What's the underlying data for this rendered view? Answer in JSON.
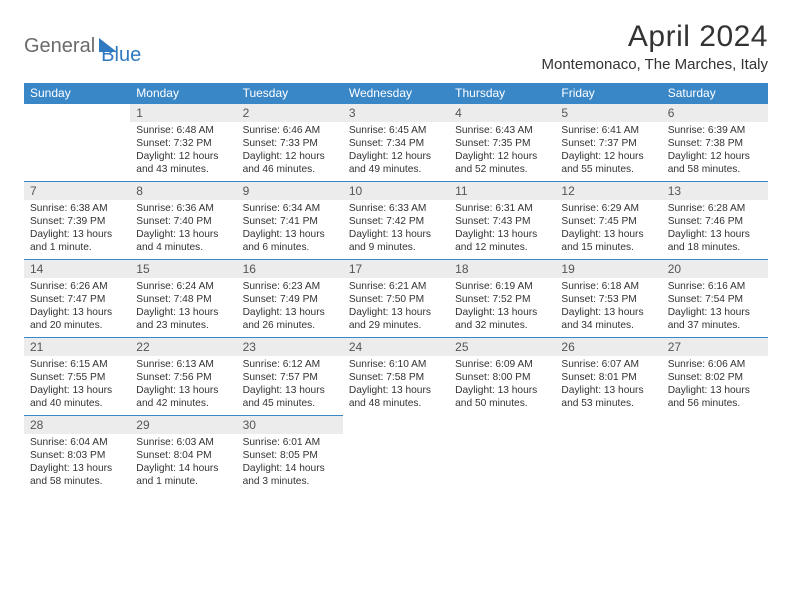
{
  "logo": {
    "general": "General",
    "blue": "Blue"
  },
  "title": "April 2024",
  "location": "Montemonaco, The Marches, Italy",
  "colors": {
    "header_bg": "#3a87c8",
    "header_text": "#ffffff",
    "daynum_bg": "#ececec",
    "text": "#333333",
    "logo_gray": "#6b6b6b",
    "logo_blue": "#2f7ac0"
  },
  "day_names": [
    "Sunday",
    "Monday",
    "Tuesday",
    "Wednesday",
    "Thursday",
    "Friday",
    "Saturday"
  ],
  "weeks": [
    [
      {
        "empty": true
      },
      {
        "num": "1",
        "sunrise": "6:48 AM",
        "sunset": "7:32 PM",
        "daylight": "12 hours and 43 minutes."
      },
      {
        "num": "2",
        "sunrise": "6:46 AM",
        "sunset": "7:33 PM",
        "daylight": "12 hours and 46 minutes."
      },
      {
        "num": "3",
        "sunrise": "6:45 AM",
        "sunset": "7:34 PM",
        "daylight": "12 hours and 49 minutes."
      },
      {
        "num": "4",
        "sunrise": "6:43 AM",
        "sunset": "7:35 PM",
        "daylight": "12 hours and 52 minutes."
      },
      {
        "num": "5",
        "sunrise": "6:41 AM",
        "sunset": "7:37 PM",
        "daylight": "12 hours and 55 minutes."
      },
      {
        "num": "6",
        "sunrise": "6:39 AM",
        "sunset": "7:38 PM",
        "daylight": "12 hours and 58 minutes."
      }
    ],
    [
      {
        "num": "7",
        "sunrise": "6:38 AM",
        "sunset": "7:39 PM",
        "daylight": "13 hours and 1 minute."
      },
      {
        "num": "8",
        "sunrise": "6:36 AM",
        "sunset": "7:40 PM",
        "daylight": "13 hours and 4 minutes."
      },
      {
        "num": "9",
        "sunrise": "6:34 AM",
        "sunset": "7:41 PM",
        "daylight": "13 hours and 6 minutes."
      },
      {
        "num": "10",
        "sunrise": "6:33 AM",
        "sunset": "7:42 PM",
        "daylight": "13 hours and 9 minutes."
      },
      {
        "num": "11",
        "sunrise": "6:31 AM",
        "sunset": "7:43 PM",
        "daylight": "13 hours and 12 minutes."
      },
      {
        "num": "12",
        "sunrise": "6:29 AM",
        "sunset": "7:45 PM",
        "daylight": "13 hours and 15 minutes."
      },
      {
        "num": "13",
        "sunrise": "6:28 AM",
        "sunset": "7:46 PM",
        "daylight": "13 hours and 18 minutes."
      }
    ],
    [
      {
        "num": "14",
        "sunrise": "6:26 AM",
        "sunset": "7:47 PM",
        "daylight": "13 hours and 20 minutes."
      },
      {
        "num": "15",
        "sunrise": "6:24 AM",
        "sunset": "7:48 PM",
        "daylight": "13 hours and 23 minutes."
      },
      {
        "num": "16",
        "sunrise": "6:23 AM",
        "sunset": "7:49 PM",
        "daylight": "13 hours and 26 minutes."
      },
      {
        "num": "17",
        "sunrise": "6:21 AM",
        "sunset": "7:50 PM",
        "daylight": "13 hours and 29 minutes."
      },
      {
        "num": "18",
        "sunrise": "6:19 AM",
        "sunset": "7:52 PM",
        "daylight": "13 hours and 32 minutes."
      },
      {
        "num": "19",
        "sunrise": "6:18 AM",
        "sunset": "7:53 PM",
        "daylight": "13 hours and 34 minutes."
      },
      {
        "num": "20",
        "sunrise": "6:16 AM",
        "sunset": "7:54 PM",
        "daylight": "13 hours and 37 minutes."
      }
    ],
    [
      {
        "num": "21",
        "sunrise": "6:15 AM",
        "sunset": "7:55 PM",
        "daylight": "13 hours and 40 minutes."
      },
      {
        "num": "22",
        "sunrise": "6:13 AM",
        "sunset": "7:56 PM",
        "daylight": "13 hours and 42 minutes."
      },
      {
        "num": "23",
        "sunrise": "6:12 AM",
        "sunset": "7:57 PM",
        "daylight": "13 hours and 45 minutes."
      },
      {
        "num": "24",
        "sunrise": "6:10 AM",
        "sunset": "7:58 PM",
        "daylight": "13 hours and 48 minutes."
      },
      {
        "num": "25",
        "sunrise": "6:09 AM",
        "sunset": "8:00 PM",
        "daylight": "13 hours and 50 minutes."
      },
      {
        "num": "26",
        "sunrise": "6:07 AM",
        "sunset": "8:01 PM",
        "daylight": "13 hours and 53 minutes."
      },
      {
        "num": "27",
        "sunrise": "6:06 AM",
        "sunset": "8:02 PM",
        "daylight": "13 hours and 56 minutes."
      }
    ],
    [
      {
        "num": "28",
        "sunrise": "6:04 AM",
        "sunset": "8:03 PM",
        "daylight": "13 hours and 58 minutes."
      },
      {
        "num": "29",
        "sunrise": "6:03 AM",
        "sunset": "8:04 PM",
        "daylight": "14 hours and 1 minute."
      },
      {
        "num": "30",
        "sunrise": "6:01 AM",
        "sunset": "8:05 PM",
        "daylight": "14 hours and 3 minutes."
      },
      {
        "empty": true
      },
      {
        "empty": true
      },
      {
        "empty": true
      },
      {
        "empty": true
      }
    ]
  ],
  "labels": {
    "sunrise": "Sunrise:",
    "sunset": "Sunset:",
    "daylight": "Daylight:"
  }
}
